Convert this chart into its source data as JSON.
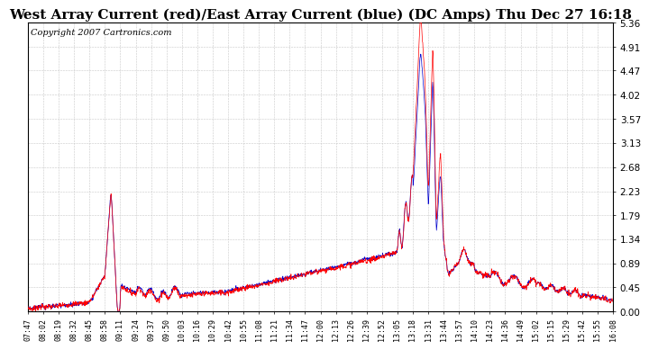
{
  "title": "West Array Current (red)/East Array Current (blue) (DC Amps) Thu Dec 27 16:18",
  "copyright": "Copyright 2007 Cartronics.com",
  "yticks": [
    0.0,
    0.45,
    0.89,
    1.34,
    1.79,
    2.23,
    2.68,
    3.13,
    3.57,
    4.02,
    4.47,
    4.91,
    5.36
  ],
  "ylim": [
    0.0,
    5.36
  ],
  "xtick_labels": [
    "07:47",
    "08:02",
    "08:19",
    "08:32",
    "08:45",
    "08:58",
    "09:11",
    "09:24",
    "09:37",
    "09:50",
    "10:03",
    "10:16",
    "10:29",
    "10:42",
    "10:55",
    "11:08",
    "11:21",
    "11:34",
    "11:47",
    "12:00",
    "12:13",
    "12:26",
    "12:39",
    "12:52",
    "13:05",
    "13:18",
    "13:31",
    "13:44",
    "13:57",
    "14:10",
    "14:23",
    "14:36",
    "14:49",
    "15:02",
    "15:15",
    "15:29",
    "15:42",
    "15:55",
    "16:08"
  ],
  "background_color": "#ffffff",
  "grid_color": "#c8c8c8",
  "line_red": "#ff0000",
  "line_blue": "#0000cc",
  "title_fontsize": 11,
  "copyright_fontsize": 7
}
